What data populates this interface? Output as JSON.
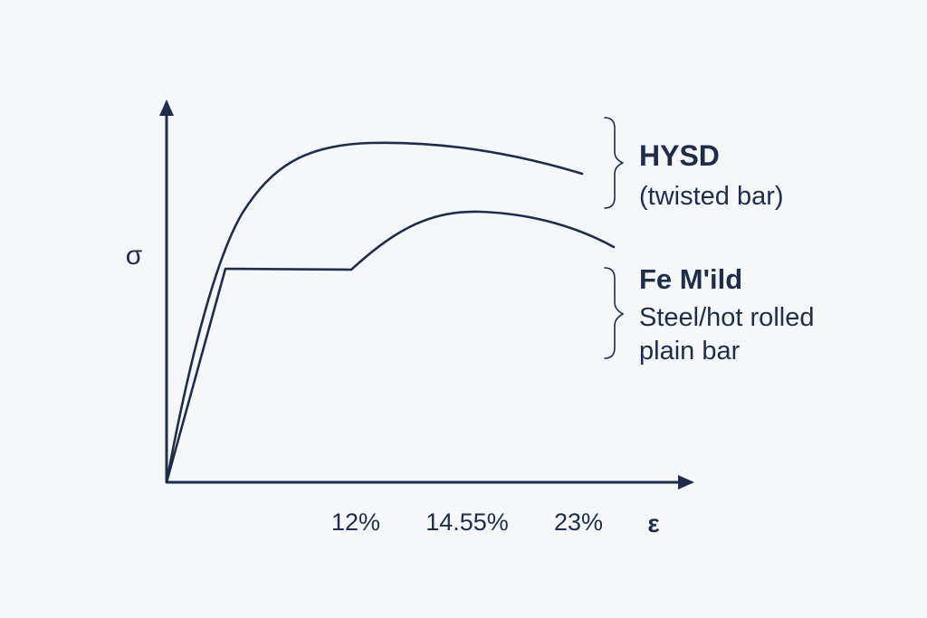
{
  "chart_data": {
    "type": "line",
    "title": "",
    "xlabel": "ε",
    "ylabel": "σ",
    "ticks": [
      "12%",
      "14.55%",
      "23%"
    ],
    "grid": false,
    "series": [
      {
        "name_lines": [
          "HYSD",
          "(twisted bar)"
        ],
        "color": "#1f2d4a",
        "points": [
          [
            0,
            0
          ],
          [
            3,
            220
          ],
          [
            7,
            315
          ],
          [
            11,
            345
          ],
          [
            17,
            345
          ],
          [
            21,
            337
          ],
          [
            27,
            322
          ],
          [
            30,
            308
          ]
        ]
      },
      {
        "name_lines": [
          "Fe M'ild",
          "Steel/hot rolled",
          "plain bar"
        ],
        "color": "#1f2d4a",
        "points": [
          [
            0,
            0
          ],
          [
            4.25,
            223
          ],
          [
            13.3,
            223
          ],
          [
            17,
            260
          ],
          [
            21,
            282
          ],
          [
            27,
            276
          ],
          [
            31,
            240
          ],
          [
            33,
            250
          ]
        ]
      }
    ]
  },
  "colors": {
    "axis": "#1f2d4a",
    "text": "#1f2d4a",
    "background": "#f6f7f9"
  }
}
